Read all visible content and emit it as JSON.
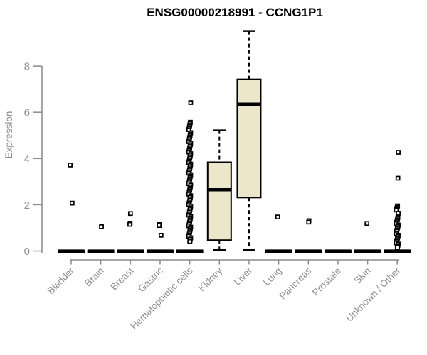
{
  "chart_data": {
    "type": "boxplot",
    "title": "ENSG00000218991 - CCNG1P1",
    "ylabel": "Expression",
    "xlabel": "",
    "yticks": [
      0,
      2,
      4,
      6,
      8
    ],
    "ylim": [
      0,
      9.6
    ],
    "grid": false,
    "legend": null,
    "colors": {
      "box_fill": "#ece7cb",
      "box_border": "#000000",
      "median": "#000000",
      "axis": "#8a8a8a",
      "tick_text": "#8e8e8e",
      "points": "#000000",
      "background": "#ffffff"
    },
    "categories": [
      {
        "label": "Bladder",
        "zero_bar": true,
        "box": null,
        "points": [
          3.72,
          2.07
        ]
      },
      {
        "label": "Brain",
        "zero_bar": true,
        "box": null,
        "points": [
          1.05
        ]
      },
      {
        "label": "Breast",
        "zero_bar": true,
        "box": null,
        "points": [
          1.62,
          1.2,
          1.15
        ]
      },
      {
        "label": "Gastric",
        "zero_bar": true,
        "box": null,
        "points": [
          1.15,
          1.1,
          0.68
        ]
      },
      {
        "label": "Hematopoietic cells",
        "zero_bar": true,
        "box": null,
        "points": [
          6.42,
          5.57,
          5.51,
          5.44,
          5.38,
          5.31,
          5.25,
          5.12,
          5.06,
          4.99,
          4.93,
          4.86,
          4.8,
          4.73,
          4.67,
          4.6,
          4.54,
          4.47,
          4.41,
          4.34,
          4.28,
          4.21,
          4.15,
          4.08,
          4.02,
          3.95,
          3.89,
          3.82,
          3.76,
          3.69,
          3.63,
          3.56,
          3.5,
          3.43,
          3.37,
          3.3,
          3.24,
          3.17,
          3.11,
          3.04,
          2.98,
          2.91,
          2.85,
          2.78,
          2.72,
          2.65,
          2.59,
          2.52,
          2.46,
          2.39,
          2.33,
          2.26,
          2.2,
          2.13,
          2.07,
          2.0,
          1.94,
          1.87,
          1.81,
          1.74,
          1.68,
          1.61,
          1.55,
          1.48,
          1.42,
          1.35,
          1.29,
          1.22,
          1.16,
          1.09,
          1.03,
          0.96,
          0.9,
          0.83,
          0.77,
          0.7,
          0.64,
          0.57,
          0.51,
          0.44,
          0.41
        ]
      },
      {
        "label": "Kidney",
        "zero_bar": false,
        "box": {
          "low": 0.05,
          "q1": 0.47,
          "median": 2.65,
          "q3": 3.84,
          "high": 5.22
        },
        "points": []
      },
      {
        "label": "Liver",
        "zero_bar": false,
        "box": {
          "low": 0.05,
          "q1": 2.31,
          "median": 6.35,
          "q3": 7.43,
          "high": 9.52
        },
        "points": []
      },
      {
        "label": "Lung",
        "zero_bar": true,
        "box": null,
        "points": [
          1.47
        ]
      },
      {
        "label": "Pancreas",
        "zero_bar": true,
        "box": null,
        "points": [
          1.31,
          1.25
        ]
      },
      {
        "label": "Prostate",
        "zero_bar": true,
        "box": null,
        "points": []
      },
      {
        "label": "Skin",
        "zero_bar": true,
        "box": null,
        "points": [
          1.19
        ]
      },
      {
        "label": "Unknown / Other",
        "zero_bar": true,
        "box": null,
        "points": [
          4.27,
          3.15,
          1.95,
          1.9,
          1.86,
          1.81,
          1.77,
          1.63,
          1.45,
          1.4,
          1.34,
          1.29,
          1.23,
          1.18,
          1.12,
          1.07,
          1.01,
          0.96,
          0.9,
          0.85,
          0.74,
          0.68,
          0.63,
          0.57,
          0.52,
          0.46,
          0.41,
          0.35,
          0.3,
          0.24,
          0.19,
          0.15
        ]
      }
    ]
  }
}
